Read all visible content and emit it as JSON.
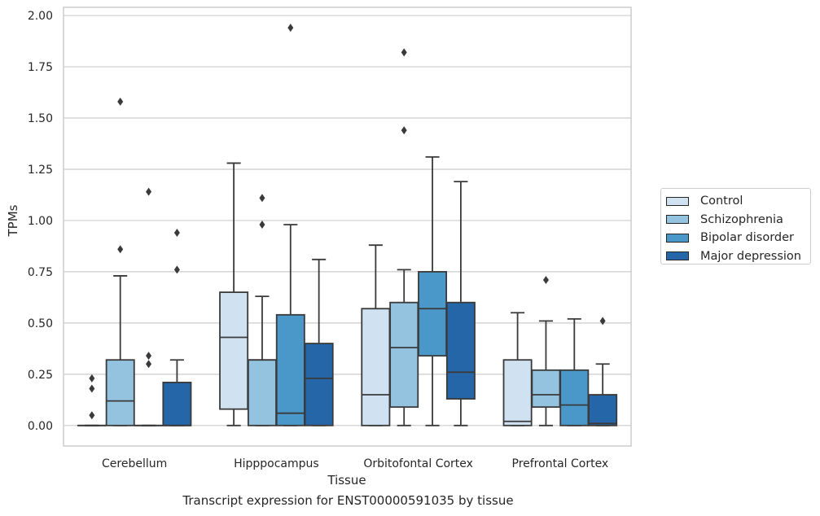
{
  "caption": "Transcript expression for ENST00000591035 by tissue",
  "legend": {
    "items": [
      {
        "label": "Control",
        "color": "#d0e2f2"
      },
      {
        "label": "Schizophrenia",
        "color": "#93c3df"
      },
      {
        "label": "Bipolar disorder",
        "color": "#4a98c9"
      },
      {
        "label": "Major depression",
        "color": "#2466a8"
      }
    ]
  },
  "chart_data": {
    "type": "box",
    "xlabel": "Tissue",
    "ylabel": "TPMs",
    "ylim": [
      -0.1,
      2.04
    ],
    "yticks": [
      0.0,
      0.25,
      0.5,
      0.75,
      1.0,
      1.25,
      1.5,
      1.75,
      2.0
    ],
    "ytick_labels": [
      "0.00",
      "0.25",
      "0.50",
      "0.75",
      "1.00",
      "1.25",
      "1.50",
      "1.75",
      "2.00"
    ],
    "grid": "horizontal",
    "legend_position": "outside-right",
    "categories": [
      "Cerebellum",
      "Hipppocampus",
      "Orbitofontal Cortex",
      "Prefrontal Cortex"
    ],
    "series": [
      {
        "name": "Control",
        "boxes": [
          {
            "whislo": 0.0,
            "q1": 0.0,
            "med": 0.0,
            "q3": 0.0,
            "whishi": 0.0,
            "fliers": [
              0.05,
              0.18,
              0.23
            ]
          },
          {
            "whislo": 0.0,
            "q1": 0.08,
            "med": 0.43,
            "q3": 0.65,
            "whishi": 1.28,
            "fliers": []
          },
          {
            "whislo": 0.0,
            "q1": 0.0,
            "med": 0.15,
            "q3": 0.57,
            "whishi": 0.88,
            "fliers": []
          },
          {
            "whislo": 0.0,
            "q1": 0.0,
            "med": 0.02,
            "q3": 0.32,
            "whishi": 0.55,
            "fliers": []
          }
        ]
      },
      {
        "name": "Schizophrenia",
        "boxes": [
          {
            "whislo": 0.0,
            "q1": 0.0,
            "med": 0.12,
            "q3": 0.32,
            "whishi": 0.73,
            "fliers": [
              0.86,
              1.58
            ]
          },
          {
            "whislo": 0.0,
            "q1": 0.0,
            "med": 0.32,
            "q3": 0.32,
            "whishi": 0.63,
            "fliers": [
              0.98,
              1.11
            ]
          },
          {
            "whislo": 0.0,
            "q1": 0.09,
            "med": 0.38,
            "q3": 0.6,
            "whishi": 0.76,
            "fliers": [
              1.44,
              1.82
            ]
          },
          {
            "whislo": 0.0,
            "q1": 0.09,
            "med": 0.15,
            "q3": 0.27,
            "whishi": 0.51,
            "fliers": [
              0.71
            ]
          }
        ]
      },
      {
        "name": "Bipolar disorder",
        "boxes": [
          {
            "whislo": 0.0,
            "q1": 0.0,
            "med": 0.0,
            "q3": 0.0,
            "whishi": 0.0,
            "fliers": [
              0.3,
              0.34,
              1.14
            ]
          },
          {
            "whislo": 0.0,
            "q1": 0.0,
            "med": 0.06,
            "q3": 0.54,
            "whishi": 0.98,
            "fliers": [
              1.94
            ]
          },
          {
            "whislo": 0.0,
            "q1": 0.34,
            "med": 0.57,
            "q3": 0.75,
            "whishi": 1.31,
            "fliers": []
          },
          {
            "whislo": 0.0,
            "q1": 0.0,
            "med": 0.1,
            "q3": 0.27,
            "whishi": 0.52,
            "fliers": []
          }
        ]
      },
      {
        "name": "Major depression",
        "boxes": [
          {
            "whislo": 0.0,
            "q1": 0.0,
            "med": 0.0,
            "q3": 0.21,
            "whishi": 0.32,
            "fliers": [
              0.76,
              0.94
            ]
          },
          {
            "whislo": 0.0,
            "q1": 0.0,
            "med": 0.23,
            "q3": 0.4,
            "whishi": 0.81,
            "fliers": []
          },
          {
            "whislo": 0.0,
            "q1": 0.13,
            "med": 0.26,
            "q3": 0.6,
            "whishi": 1.19,
            "fliers": []
          },
          {
            "whislo": 0.0,
            "q1": 0.0,
            "med": 0.01,
            "q3": 0.15,
            "whishi": 0.3,
            "fliers": [
              0.51
            ]
          }
        ]
      }
    ]
  }
}
